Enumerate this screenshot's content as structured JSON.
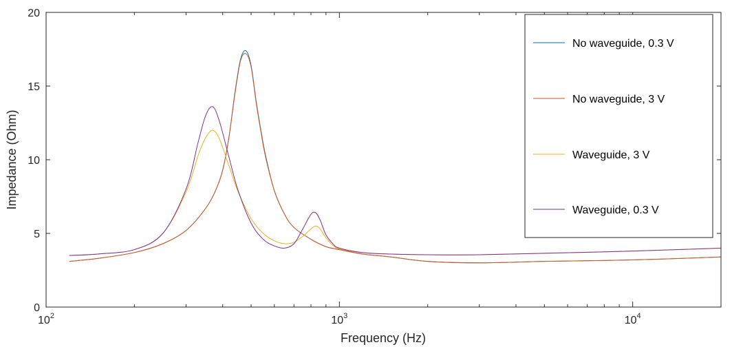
{
  "chart_data": {
    "type": "line",
    "title": "",
    "xlabel": "Frequency (Hz)",
    "ylabel": "Impedance (Ohm)",
    "xscale": "log",
    "xlim": [
      100,
      20000
    ],
    "ylim": [
      0,
      20
    ],
    "x_ticks": [
      {
        "value": 100,
        "base": "10",
        "exp": "2"
      },
      {
        "value": 1000,
        "base": "10",
        "exp": "3"
      },
      {
        "value": 10000,
        "base": "10",
        "exp": "4"
      }
    ],
    "y_ticks": [
      {
        "value": 0,
        "label": "0"
      },
      {
        "value": 5,
        "label": "5"
      },
      {
        "value": 10,
        "label": "10"
      },
      {
        "value": 15,
        "label": "15"
      },
      {
        "value": 20,
        "label": "20"
      }
    ],
    "grid": false,
    "legend_position": "top-right",
    "series": [
      {
        "name": "No waveguide, 0.3 V",
        "color": "#0072BD",
        "x": [
          120,
          150,
          200,
          250,
          300,
          350,
          380,
          400,
          420,
          440,
          460,
          480,
          500,
          520,
          540,
          560,
          600,
          650,
          700,
          800,
          900,
          1000,
          1200,
          1500,
          2000,
          3000,
          5000,
          10000,
          20000
        ],
        "y": [
          3.1,
          3.3,
          3.7,
          4.3,
          5.2,
          6.7,
          8.0,
          9.3,
          11.5,
          14.5,
          16.8,
          17.4,
          16.4,
          14.0,
          12.0,
          10.3,
          7.9,
          6.3,
          5.4,
          4.6,
          4.1,
          3.9,
          3.6,
          3.4,
          3.1,
          3.0,
          3.1,
          3.2,
          3.4
        ]
      },
      {
        "name": "No waveguide, 3 V",
        "color": "#D95319",
        "x": [
          120,
          150,
          200,
          250,
          300,
          350,
          380,
          400,
          420,
          440,
          460,
          480,
          500,
          520,
          540,
          560,
          600,
          650,
          700,
          800,
          900,
          1000,
          1200,
          1500,
          2000,
          3000,
          5000,
          10000,
          20000
        ],
        "y": [
          3.1,
          3.3,
          3.7,
          4.3,
          5.2,
          6.7,
          8.0,
          9.3,
          11.5,
          14.4,
          16.7,
          17.2,
          16.3,
          13.9,
          11.9,
          10.2,
          7.9,
          6.3,
          5.4,
          4.6,
          4.1,
          3.9,
          3.6,
          3.4,
          3.1,
          3.0,
          3.1,
          3.2,
          3.4
        ]
      },
      {
        "name": "Waveguide, 3 V",
        "color": "#EDB120",
        "x": [
          120,
          150,
          200,
          250,
          300,
          330,
          350,
          370,
          390,
          420,
          450,
          500,
          550,
          600,
          650,
          700,
          750,
          800,
          830,
          860,
          900,
          950,
          1000,
          1200,
          1500,
          2000,
          3000,
          5000,
          10000,
          20000
        ],
        "y": [
          3.5,
          3.6,
          3.9,
          5.0,
          7.8,
          10.3,
          11.5,
          12.0,
          11.4,
          9.6,
          7.9,
          6.0,
          5.0,
          4.5,
          4.3,
          4.4,
          4.8,
          5.3,
          5.5,
          5.3,
          4.7,
          4.2,
          3.95,
          3.7,
          3.6,
          3.55,
          3.55,
          3.65,
          3.8,
          4.0
        ]
      },
      {
        "name": "Waveguide, 0.3 V",
        "color": "#7E2F8E",
        "x": [
          120,
          150,
          200,
          250,
          300,
          330,
          350,
          370,
          390,
          420,
          450,
          500,
          550,
          600,
          650,
          700,
          750,
          800,
          830,
          860,
          900,
          950,
          1000,
          1200,
          1500,
          2000,
          3000,
          5000,
          10000,
          20000
        ],
        "y": [
          3.5,
          3.6,
          3.9,
          5.0,
          8.0,
          11.2,
          13.0,
          13.6,
          12.6,
          10.2,
          8.0,
          5.7,
          4.6,
          4.15,
          4.0,
          4.3,
          5.3,
          6.3,
          6.4,
          5.9,
          4.9,
          4.3,
          4.0,
          3.7,
          3.6,
          3.55,
          3.55,
          3.65,
          3.8,
          4.0
        ]
      }
    ]
  }
}
